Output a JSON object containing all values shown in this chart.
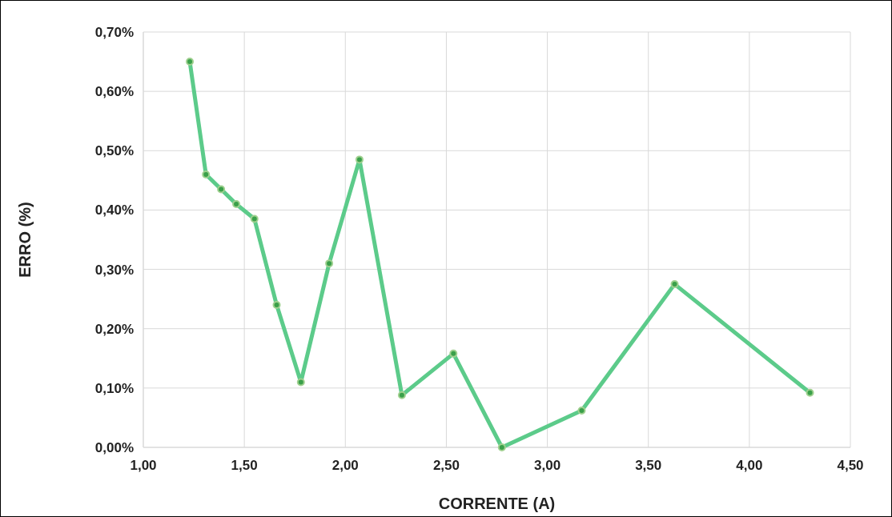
{
  "chart_data": {
    "type": "line",
    "xlabel": "CORRENTE (A)",
    "ylabel": "ERRO (%)",
    "x": [
      1.23,
      1.31,
      1.385,
      1.46,
      1.55,
      1.66,
      1.78,
      1.92,
      2.07,
      2.28,
      2.535,
      2.775,
      3.17,
      3.63,
      4.3
    ],
    "series": [
      {
        "color": "#5ccb8a",
        "values": [
          0.65,
          0.46,
          0.435,
          0.41,
          0.385,
          0.24,
          0.11,
          0.31,
          0.485,
          0.088,
          0.158,
          0,
          0.062,
          0.275,
          0.092
        ]
      }
    ],
    "xlim": [
      1,
      4.5
    ],
    "xticks": [
      {
        "value": 1,
        "label": "1,00"
      },
      {
        "value": 1.5,
        "label": "1,50"
      },
      {
        "value": 2,
        "label": "2,00"
      },
      {
        "value": 2.5,
        "label": "2,50"
      },
      {
        "value": 3,
        "label": "3,00"
      },
      {
        "value": 3.5,
        "label": "3,50"
      },
      {
        "value": 4,
        "label": "4,00"
      },
      {
        "value": 4.5,
        "label": "4,50"
      }
    ],
    "ylim": [
      0,
      0.7
    ],
    "yticks": [
      {
        "value": 0,
        "label": "0,00%"
      },
      {
        "value": 0.1,
        "label": "0,10%"
      },
      {
        "value": 0.2,
        "label": "0,20%"
      },
      {
        "value": 0.3,
        "label": "0,30%"
      },
      {
        "value": 0.4,
        "label": "0,40%"
      },
      {
        "value": 0.5,
        "label": "0,50%"
      },
      {
        "value": 0.6,
        "label": "0,60%"
      },
      {
        "value": 0.7,
        "label": "0,70%"
      }
    ],
    "grid": true,
    "marker": "circle",
    "line_style": "solid"
  }
}
